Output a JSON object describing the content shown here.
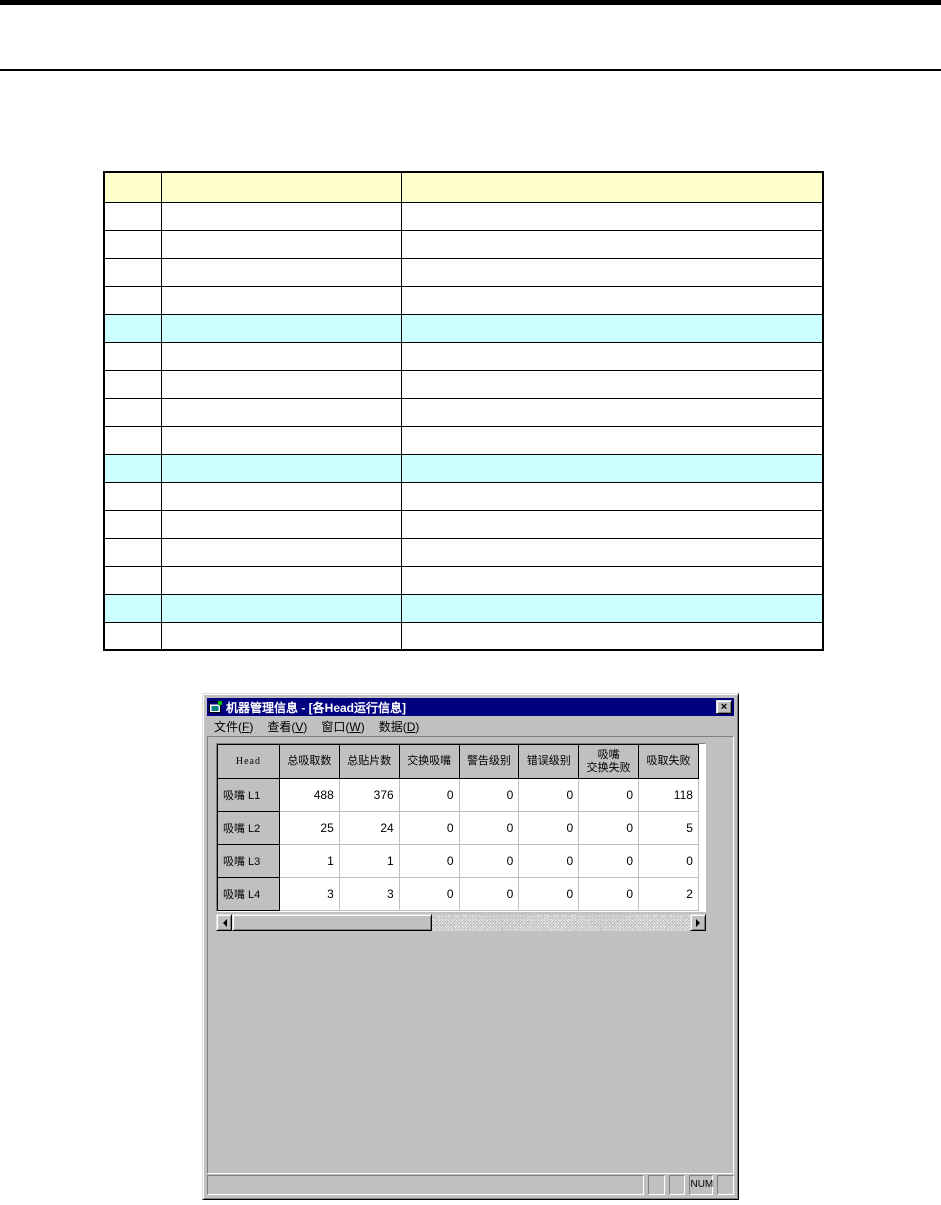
{
  "page": {
    "top_bar_color": "#000000",
    "header_rule_color": "#000000"
  },
  "doc_table": {
    "header_bg": "#ffffcc",
    "highlight_bg": "#ccffff",
    "columns": [
      "",
      "",
      ""
    ],
    "row_count": 16,
    "highlight_rows": [
      5,
      10,
      15
    ],
    "rows_cells": [
      "",
      "",
      ""
    ]
  },
  "window": {
    "title": "机器管理信息 - [各Head运行信息]",
    "title_bar_color": "#000080",
    "icons": {
      "app": "app-window-icon",
      "close": "close-icon",
      "scroll_left": "left-arrow-icon",
      "scroll_right": "right-arrow-icon"
    },
    "close_label": "×",
    "menu_bar": {
      "items": [
        {
          "label": "文件",
          "key": "F"
        },
        {
          "label": "查看",
          "key": "V"
        },
        {
          "label": "窗口",
          "key": "W"
        },
        {
          "label": "数据",
          "key": "D"
        }
      ]
    },
    "grid": {
      "columns": [
        "Head",
        "总吸取数",
        "总贴片数",
        "交换吸嘴",
        "警告级别",
        "错误级别",
        "吸嘴\n交换失败",
        "吸取失败"
      ],
      "rows": [
        {
          "label": "吸嘴 L1",
          "values": [
            488,
            376,
            0,
            0,
            0,
            0,
            118
          ]
        },
        {
          "label": "吸嘴 L2",
          "values": [
            25,
            24,
            0,
            0,
            0,
            0,
            5
          ]
        },
        {
          "label": "吸嘴 L3",
          "values": [
            1,
            1,
            0,
            0,
            0,
            0,
            0
          ]
        },
        {
          "label": "吸嘴 L4",
          "values": [
            3,
            3,
            0,
            0,
            0,
            0,
            2
          ]
        }
      ]
    },
    "status_bar": {
      "message": "",
      "panels": [
        "",
        "",
        "NUM",
        ""
      ]
    }
  }
}
